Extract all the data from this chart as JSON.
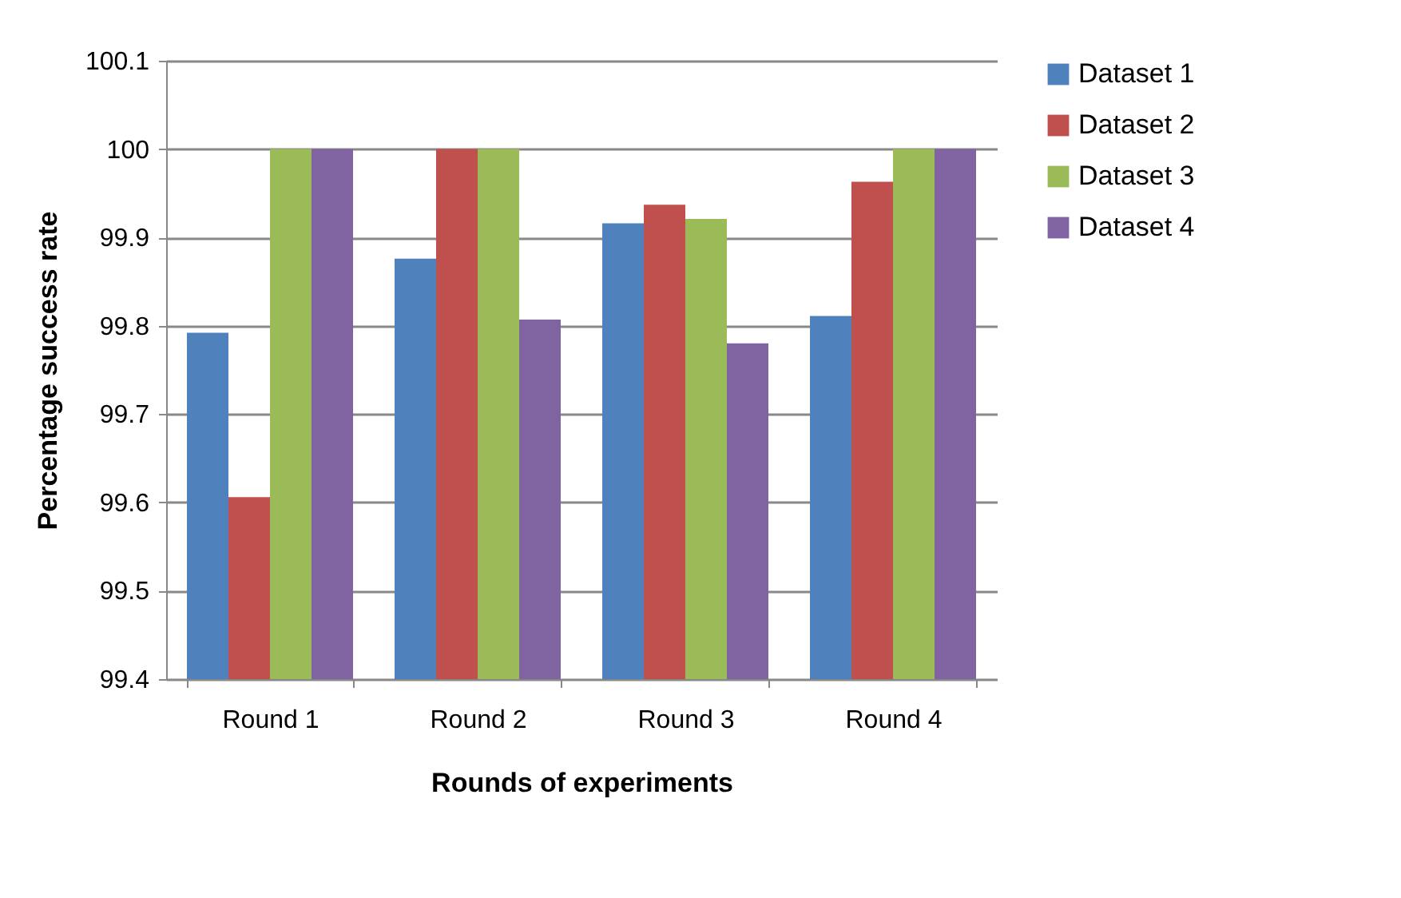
{
  "chart_data": {
    "type": "bar",
    "xlabel": "Rounds of experiments",
    "ylabel": "Percentage success rate",
    "categories": [
      "Round 1",
      "Round 2",
      "Round 3",
      "Round 4"
    ],
    "series": [
      {
        "name": "Dataset 1",
        "color": "#4f81bd",
        "values": [
          99.792,
          99.876,
          99.916,
          99.811
        ]
      },
      {
        "name": "Dataset 2",
        "color": "#c0504d",
        "values": [
          99.606,
          100,
          99.937,
          99.963
        ]
      },
      {
        "name": "Dataset 3",
        "color": "#9bbb59",
        "values": [
          100,
          100,
          99.921,
          100
        ]
      },
      {
        "name": "Dataset 4",
        "color": "#8064a2",
        "values": [
          100,
          99.807,
          99.78,
          100
        ]
      }
    ],
    "ylim": [
      99.4,
      100.1
    ],
    "yticks": [
      99.4,
      99.5,
      99.6,
      99.7,
      99.8,
      99.9,
      100,
      100.1
    ],
    "grid": "y",
    "legend": "right"
  }
}
